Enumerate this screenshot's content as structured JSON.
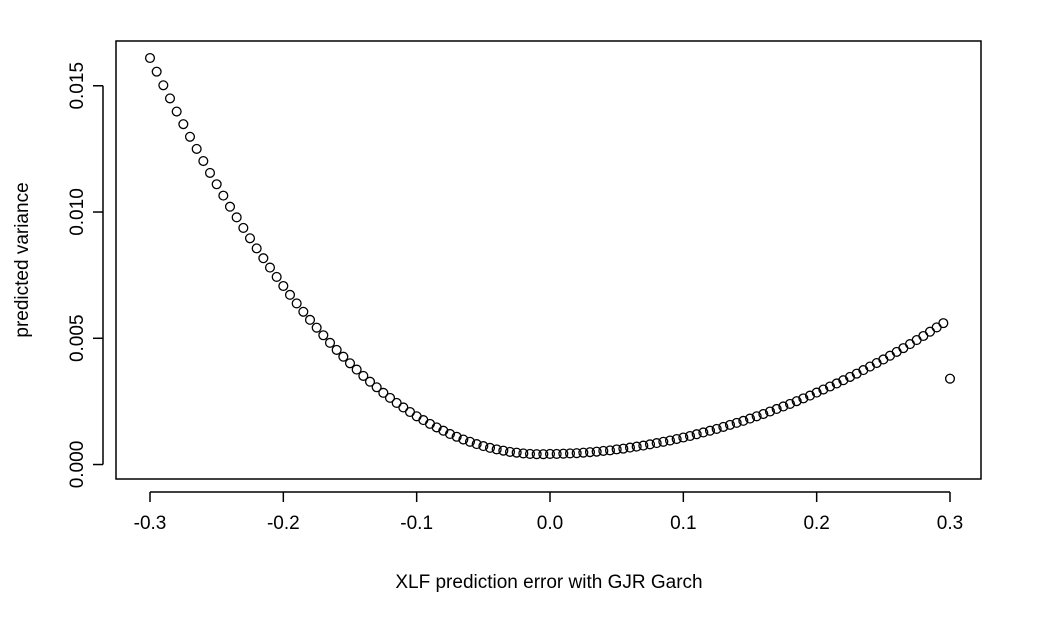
{
  "chart_data": {
    "type": "scatter",
    "title": "",
    "xlabel": "XLF prediction error with GJR Garch",
    "ylabel": "predicted variance",
    "xlim": [
      -0.3,
      0.3
    ],
    "ylim": [
      0.0001,
      0.0161
    ],
    "x_ticks": [
      -0.3,
      -0.2,
      -0.1,
      0.0,
      0.1,
      0.2,
      0.3
    ],
    "x_tick_labels": [
      "-0.3",
      "-0.2",
      "-0.1",
      "0.0",
      "0.1",
      "0.2",
      "0.3"
    ],
    "y_ticks": [
      0.0,
      0.005,
      0.01,
      0.015
    ],
    "y_tick_labels": [
      "0.000",
      "0.005",
      "0.010",
      "0.015"
    ],
    "grid": false,
    "legend": "none",
    "marker": "open-circle",
    "color": "#000000",
    "x": [
      -0.3,
      -0.295,
      -0.29,
      -0.285,
      -0.28,
      -0.275,
      -0.27,
      -0.265,
      -0.26,
      -0.255,
      -0.25,
      -0.245,
      -0.24,
      -0.235,
      -0.23,
      -0.225,
      -0.22,
      -0.215,
      -0.21,
      -0.205,
      -0.2,
      -0.195,
      -0.19,
      -0.185,
      -0.18,
      -0.175,
      -0.17,
      -0.165,
      -0.16,
      -0.155,
      -0.15,
      -0.145,
      -0.14,
      -0.135,
      -0.13,
      -0.125,
      -0.12,
      -0.115,
      -0.11,
      -0.105,
      -0.1,
      -0.095,
      -0.09,
      -0.085,
      -0.08,
      -0.075,
      -0.07,
      -0.065,
      -0.06,
      -0.055,
      -0.05,
      -0.045,
      -0.04,
      -0.035,
      -0.03,
      -0.025,
      -0.02,
      -0.015,
      -0.01,
      -0.005,
      0.0,
      0.005,
      0.01,
      0.015,
      0.02,
      0.025,
      0.03,
      0.035,
      0.04,
      0.045,
      0.05,
      0.055,
      0.06,
      0.065,
      0.07,
      0.075,
      0.08,
      0.085,
      0.09,
      0.095,
      0.1,
      0.105,
      0.11,
      0.115,
      0.12,
      0.125,
      0.13,
      0.135,
      0.14,
      0.145,
      0.15,
      0.155,
      0.16,
      0.165,
      0.17,
      0.175,
      0.18,
      0.185,
      0.19,
      0.195,
      0.2,
      0.205,
      0.21,
      0.215,
      0.22,
      0.225,
      0.23,
      0.235,
      0.24,
      0.245,
      0.25,
      0.255,
      0.26,
      0.265,
      0.27,
      0.275,
      0.28,
      0.285,
      0.29,
      0.295,
      0.3
    ],
    "y": [
      0.0161,
      0.01556,
      0.01502,
      0.0145,
      0.01398,
      0.01348,
      0.01298,
      0.0125,
      0.01202,
      0.01155,
      0.0111,
      0.01065,
      0.01021,
      0.00979,
      0.00937,
      0.00896,
      0.00856,
      0.00817,
      0.0078,
      0.00743,
      0.00707,
      0.00672,
      0.00638,
      0.00605,
      0.00573,
      0.00542,
      0.00512,
      0.00482,
      0.00454,
      0.00427,
      0.00401,
      0.00376,
      0.00351,
      0.00328,
      0.00306,
      0.00284,
      0.00264,
      0.00244,
      0.00226,
      0.00208,
      0.00191,
      0.00176,
      0.00161,
      0.00147,
      0.00134,
      0.00121,
      0.0011,
      0.00099,
      0.0009,
      0.00081,
      0.00073,
      0.00066,
      0.0006,
      0.00055,
      0.0005,
      0.00047,
      0.00044,
      0.00042,
      0.00041,
      0.00041,
      0.00042,
      0.00042,
      0.00043,
      0.00044,
      0.00045,
      0.00047,
      0.00049,
      0.00051,
      0.00054,
      0.00056,
      0.0006,
      0.00063,
      0.00067,
      0.00071,
      0.00075,
      0.0008,
      0.00085,
      0.0009,
      0.00095,
      0.00101,
      0.00107,
      0.00113,
      0.0012,
      0.00127,
      0.00134,
      0.00141,
      0.00149,
      0.00157,
      0.00165,
      0.00173,
      0.00182,
      0.00191,
      0.002,
      0.0021,
      0.0022,
      0.0023,
      0.0024,
      0.00251,
      0.00262,
      0.00273,
      0.00285,
      0.00297,
      0.00309,
      0.00321,
      0.00334,
      0.00347,
      0.0036,
      0.00374,
      0.00388,
      0.00402,
      0.00416,
      0.00431,
      0.00446,
      0.00461,
      0.00477,
      0.00493,
      0.00509,
      0.00526,
      0.00543,
      0.0056,
      0.0034
    ]
  }
}
